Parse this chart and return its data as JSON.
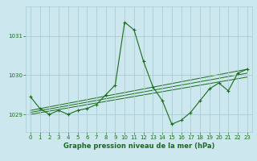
{
  "title": "Graphe pression niveau de la mer (hPa)",
  "bg_color": "#cce8ee",
  "grid_color": "#aaccd4",
  "line_color": "#1a6b1a",
  "x_ticks": [
    0,
    1,
    2,
    3,
    4,
    5,
    6,
    7,
    8,
    9,
    10,
    11,
    12,
    13,
    14,
    15,
    16,
    17,
    18,
    19,
    20,
    21,
    22,
    23
  ],
  "y_ticks": [
    1029,
    1030,
    1031
  ],
  "ylim": [
    1028.55,
    1031.75
  ],
  "xlim": [
    -0.5,
    23.5
  ],
  "series1": {
    "x": [
      0,
      1,
      2,
      3,
      4,
      5,
      6,
      7,
      8,
      9,
      10,
      11,
      12,
      13,
      14,
      15,
      16,
      17,
      18,
      19,
      20,
      21,
      22,
      23
    ],
    "y": [
      1029.45,
      1029.15,
      1029.0,
      1029.1,
      1029.0,
      1029.1,
      1029.15,
      1029.25,
      1029.5,
      1029.75,
      1031.35,
      1031.15,
      1030.35,
      1029.7,
      1029.35,
      1028.75,
      1028.85,
      1029.05,
      1029.35,
      1029.65,
      1029.8,
      1029.6,
      1030.05,
      1030.15
    ]
  },
  "trend1": {
    "x": [
      0,
      23
    ],
    "y": [
      1029.1,
      1030.15
    ]
  },
  "trend2": {
    "x": [
      0,
      23
    ],
    "y": [
      1029.05,
      1030.05
    ]
  },
  "trend3": {
    "x": [
      0,
      23
    ],
    "y": [
      1029.0,
      1029.95
    ]
  },
  "title_fontsize": 6,
  "tick_fontsize": 5
}
